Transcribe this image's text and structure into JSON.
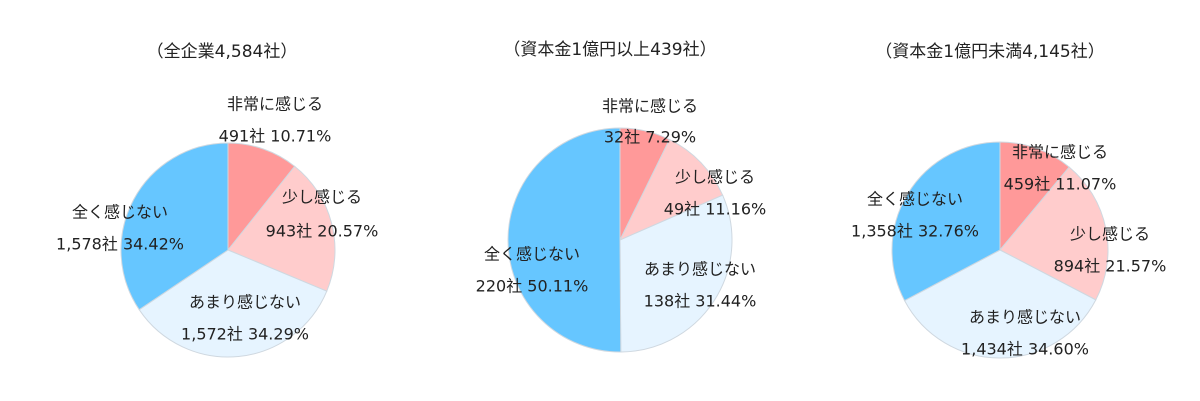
{
  "chart_data": [
    {
      "type": "pie",
      "title": "（全企業4,584社）",
      "categories": [
        "非常に感じる",
        "少し感じる",
        "あまり感じない",
        "全く感じない"
      ],
      "values": [
        10.71,
        20.57,
        34.29,
        34.42
      ],
      "value_labels": [
        "491社 10.71%",
        "943社 20.57%",
        "1,572社 34.29%",
        "1,578社 34.42%"
      ],
      "colors": [
        "#ff9999",
        "#ffcccc",
        "#e6f4ff",
        "#66c6ff"
      ]
    },
    {
      "type": "pie",
      "title": "（資本金1億円以上439社）",
      "categories": [
        "非常に感じる",
        "少し感じる",
        "あまり感じない",
        "全く感じない"
      ],
      "values": [
        7.29,
        11.16,
        31.44,
        50.11
      ],
      "value_labels": [
        "32社 7.29%",
        "49社 11.16%",
        "138社 31.44%",
        "220社 50.11%"
      ],
      "colors": [
        "#ff9999",
        "#ffcccc",
        "#e6f4ff",
        "#66c6ff"
      ]
    },
    {
      "type": "pie",
      "title": "（資本金1億円未満4,145社）",
      "categories": [
        "非常に感じる",
        "少し感じる",
        "あまり感じない",
        "全く感じない"
      ],
      "values": [
        11.07,
        21.57,
        34.6,
        32.76
      ],
      "value_labels": [
        "459社 11.07%",
        "894社 21.57%",
        "1,434社 34.60%",
        "1,358社 32.76%"
      ],
      "colors": [
        "#ff9999",
        "#ffcccc",
        "#e6f4ff",
        "#66c6ff"
      ]
    }
  ]
}
